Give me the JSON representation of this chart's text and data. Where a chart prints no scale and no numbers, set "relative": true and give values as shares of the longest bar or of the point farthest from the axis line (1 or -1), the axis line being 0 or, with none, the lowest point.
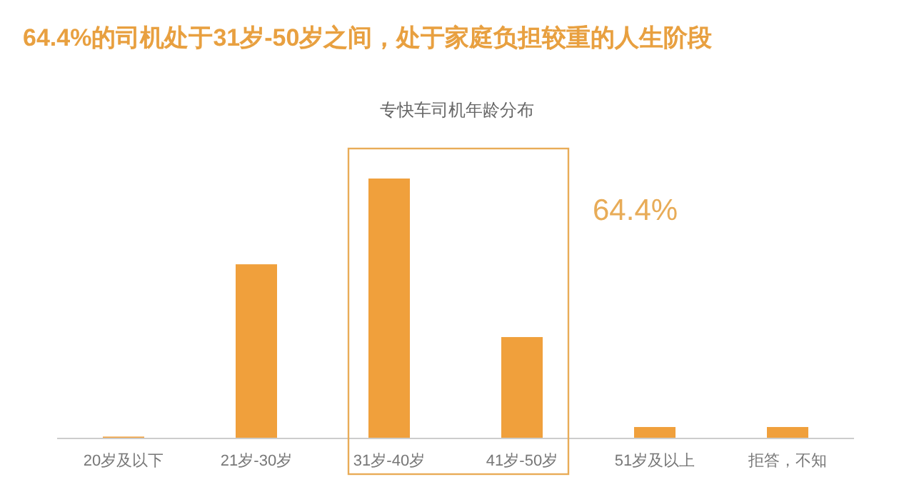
{
  "chart_data": {
    "type": "bar",
    "title": "64.4%的司机处于31岁-50岁之间，处于家庭负担较重的人生阶段",
    "subtitle": "专快车司机年龄分布",
    "categories": [
      "20岁及以下",
      "21岁-30岁",
      "31岁-40岁",
      "41岁-50岁",
      "51岁及以上",
      "拒答，不知"
    ],
    "relative": true,
    "series": [
      {
        "color": "#f0a03c",
        "values": [
          0.007,
          0.67,
          1,
          0.39,
          0.044,
          0.044
        ]
      }
    ],
    "annotations": [
      "64.4%"
    ]
  }
}
